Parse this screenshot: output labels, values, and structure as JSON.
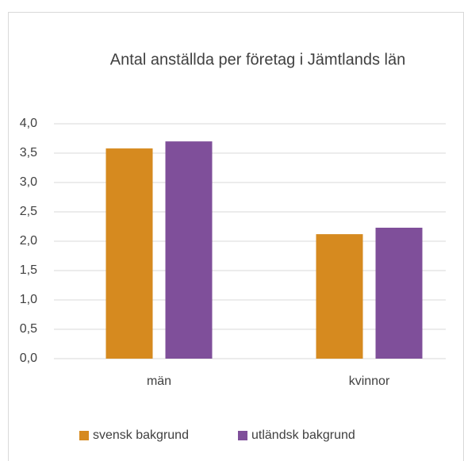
{
  "chart_data": {
    "type": "bar",
    "title": "Antal anställda per företag i Jämtlands län",
    "categories": [
      "män",
      "kvinnor"
    ],
    "series": [
      {
        "name": "svensk bakgrund",
        "color": "#d68a1f",
        "values": [
          3.58,
          2.12
        ]
      },
      {
        "name": "utländsk bakgrund",
        "color": "#7f4f9a",
        "values": [
          3.7,
          2.23
        ]
      }
    ],
    "ylim": [
      0,
      4
    ],
    "yticks": [
      {
        "value": 0,
        "label": "0,0"
      },
      {
        "value": 0.5,
        "label": "0,5"
      },
      {
        "value": 1,
        "label": "1,0"
      },
      {
        "value": 1.5,
        "label": "1,5"
      },
      {
        "value": 2,
        "label": "2,0"
      },
      {
        "value": 2.5,
        "label": "2,5"
      },
      {
        "value": 3,
        "label": "3,0"
      },
      {
        "value": 3.5,
        "label": "3,5"
      },
      {
        "value": 4,
        "label": "4,0"
      }
    ],
    "grid": true,
    "legend": "bottom"
  }
}
